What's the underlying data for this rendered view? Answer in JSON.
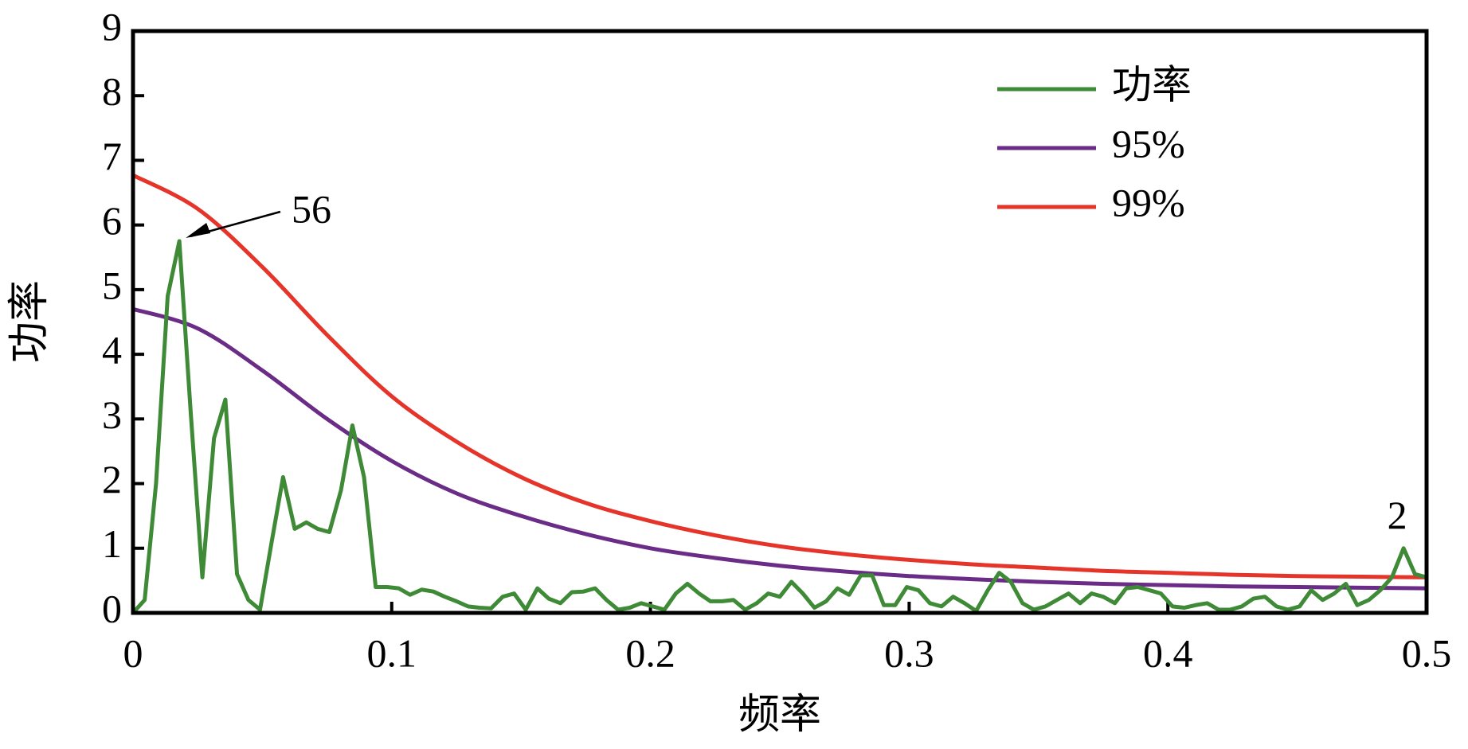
{
  "chart_data": {
    "type": "line",
    "xlabel": "频率",
    "ylabel": "功率",
    "xlim": [
      0,
      0.5
    ],
    "ylim": [
      0,
      9
    ],
    "xticks": [
      0,
      0.1,
      0.2,
      0.3,
      0.4,
      0.5
    ],
    "yticks": [
      0,
      1,
      2,
      3,
      4,
      5,
      6,
      7,
      8,
      9
    ],
    "legend": "upper right",
    "annotations": [
      "56",
      "2"
    ],
    "series": [
      {
        "name": "功率",
        "color": "#3f8a37",
        "x": [
          0,
          0.0045,
          0.0089,
          0.0134,
          0.0179,
          0.0223,
          0.0268,
          0.0313,
          0.0357,
          0.0402,
          0.0446,
          0.0491,
          0.0536,
          0.058,
          0.0625,
          0.067,
          0.0714,
          0.0759,
          0.0804,
          0.0848,
          0.0893,
          0.0938,
          0.0982,
          0.1027,
          0.1071,
          0.1116,
          0.1161,
          0.1205,
          0.125,
          0.1295,
          0.1339,
          0.1384,
          0.1429,
          0.1473,
          0.1518,
          0.1563,
          0.1607,
          0.1652,
          0.1696,
          0.1741,
          0.1786,
          0.183,
          0.1875,
          0.192,
          0.1964,
          0.2009,
          0.2054,
          0.2098,
          0.2143,
          0.2188,
          0.2232,
          0.2277,
          0.2321,
          0.2366,
          0.2411,
          0.2455,
          0.25,
          0.2545,
          0.2589,
          0.2634,
          0.2679,
          0.2723,
          0.2768,
          0.2813,
          0.2857,
          0.2902,
          0.2946,
          0.2991,
          0.3036,
          0.308,
          0.3125,
          0.317,
          0.3214,
          0.3259,
          0.3304,
          0.3348,
          0.3393,
          0.3438,
          0.3482,
          0.3527,
          0.3571,
          0.3616,
          0.3661,
          0.3705,
          0.375,
          0.3795,
          0.3839,
          0.3884,
          0.3929,
          0.3973,
          0.4018,
          0.4063,
          0.4107,
          0.4152,
          0.4196,
          0.4241,
          0.4286,
          0.433,
          0.4375,
          0.442,
          0.4464,
          0.4509,
          0.4554,
          0.4598,
          0.4643,
          0.4688,
          0.4732,
          0.4777,
          0.4821,
          0.4866,
          0.4911,
          0.4955,
          0.5
        ],
        "values": [
          0,
          0.2,
          2.0,
          4.9,
          5.75,
          3.1,
          0.55,
          2.7,
          3.3,
          0.6,
          0.2,
          0.05,
          1.1,
          2.1,
          1.3,
          1.4,
          1.3,
          1.25,
          1.9,
          2.9,
          2.1,
          0.4,
          0.4,
          0.38,
          0.28,
          0.36,
          0.33,
          0.25,
          0.18,
          0.1,
          0.08,
          0.07,
          0.25,
          0.3,
          0.05,
          0.38,
          0.22,
          0.15,
          0.32,
          0.33,
          0.38,
          0.2,
          0.05,
          0.08,
          0.15,
          0.1,
          0.05,
          0.3,
          0.45,
          0.3,
          0.18,
          0.18,
          0.2,
          0.05,
          0.15,
          0.3,
          0.25,
          0.48,
          0.3,
          0.08,
          0.18,
          0.38,
          0.28,
          0.58,
          0.58,
          0.12,
          0.12,
          0.4,
          0.35,
          0.15,
          0.1,
          0.25,
          0.15,
          0.03,
          0.35,
          0.62,
          0.48,
          0.15,
          0.05,
          0.1,
          0.2,
          0.3,
          0.15,
          0.3,
          0.25,
          0.15,
          0.38,
          0.4,
          0.35,
          0.3,
          0.1,
          0.08,
          0.12,
          0.15,
          0.05,
          0.05,
          0.1,
          0.22,
          0.25,
          0.1,
          0.05,
          0.1,
          0.35,
          0.2,
          0.3,
          0.45,
          0.12,
          0.2,
          0.35,
          0.55,
          1.0,
          0.6,
          0.55
        ]
      },
      {
        "name": "95%",
        "color": "#6a2c86",
        "x": [
          0,
          0.025,
          0.05,
          0.075,
          0.1,
          0.125,
          0.15,
          0.175,
          0.2,
          0.225,
          0.25,
          0.275,
          0.3,
          0.325,
          0.35,
          0.375,
          0.4,
          0.425,
          0.45,
          0.475,
          0.5
        ],
        "values": [
          4.7,
          4.4,
          3.75,
          3.0,
          2.35,
          1.85,
          1.5,
          1.22,
          1.0,
          0.85,
          0.73,
          0.64,
          0.57,
          0.52,
          0.48,
          0.45,
          0.43,
          0.41,
          0.4,
          0.39,
          0.38
        ]
      },
      {
        "name": "99%",
        "color": "#e5352b",
        "x": [
          0,
          0.025,
          0.05,
          0.075,
          0.1,
          0.125,
          0.15,
          0.175,
          0.2,
          0.225,
          0.25,
          0.275,
          0.3,
          0.325,
          0.35,
          0.375,
          0.4,
          0.425,
          0.45,
          0.475,
          0.5
        ],
        "values": [
          6.77,
          6.25,
          5.35,
          4.3,
          3.35,
          2.65,
          2.1,
          1.7,
          1.42,
          1.2,
          1.03,
          0.91,
          0.82,
          0.75,
          0.7,
          0.65,
          0.62,
          0.59,
          0.57,
          0.56,
          0.55
        ]
      }
    ]
  }
}
